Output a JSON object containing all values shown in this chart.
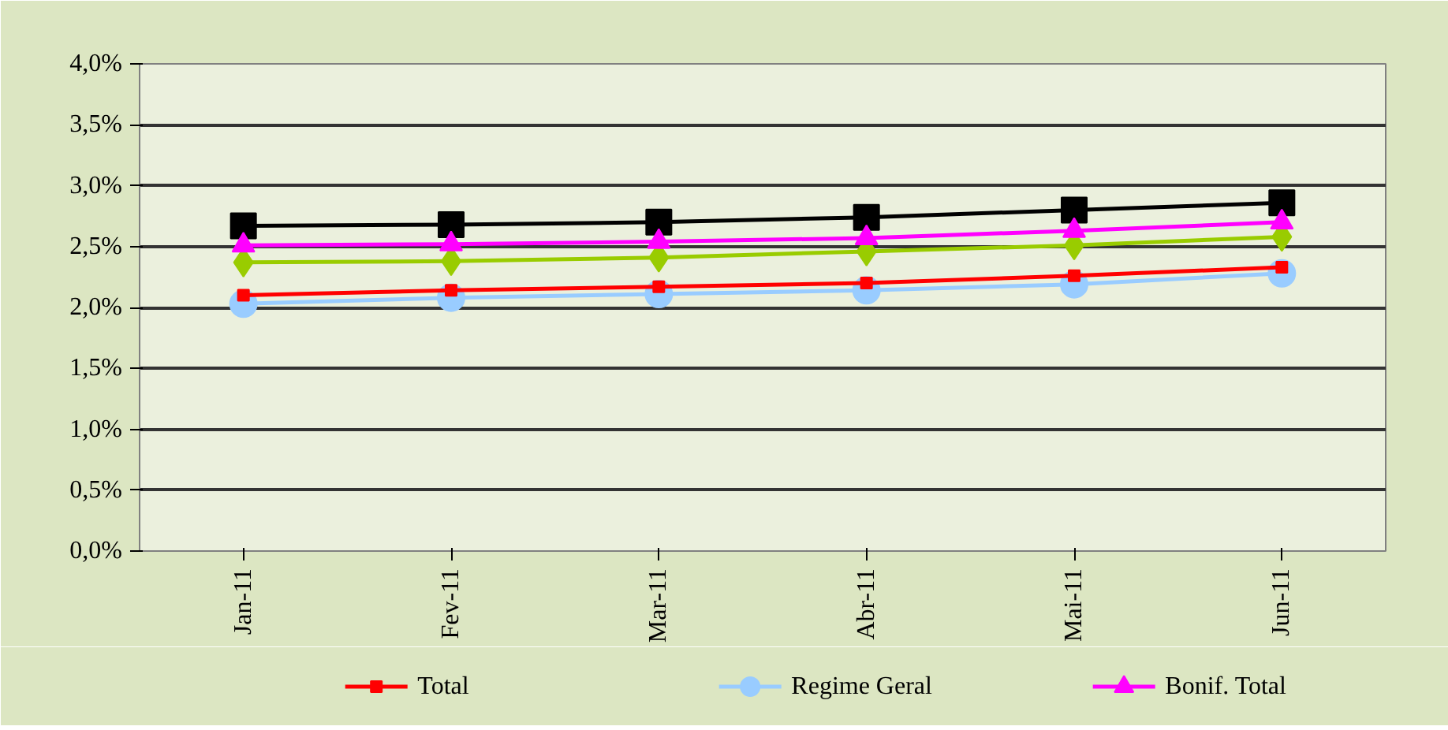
{
  "chart_data": {
    "type": "line",
    "categories": [
      "Jan-11",
      "Fev-11",
      "Mar-11",
      "Abr-11",
      "Mai-11",
      "Jun-11"
    ],
    "ylim": [
      0,
      4
    ],
    "yticks": [
      {
        "value": 0,
        "label": "0,0%"
      },
      {
        "value": 0.5,
        "label": "0,5%"
      },
      {
        "value": 1,
        "label": "1,0%"
      },
      {
        "value": 1.5,
        "label": "1,5%"
      },
      {
        "value": 2,
        "label": "2,0%"
      },
      {
        "value": 2.5,
        "label": "2,5%"
      },
      {
        "value": 3,
        "label": "3,0%"
      },
      {
        "value": 3.5,
        "label": "3,5%"
      },
      {
        "value": 4,
        "label": "4,0%"
      }
    ],
    "grid": "y",
    "legend": "bottom",
    "series": [
      {
        "name": "Total",
        "color": "#ff0000",
        "marker": "square",
        "values": [
          2.1,
          2.14,
          2.17,
          2.2,
          2.26,
          2.33
        ]
      },
      {
        "name": "Regime Geral",
        "color": "#99ccff",
        "marker": "circle",
        "values": [
          2.03,
          2.08,
          2.11,
          2.14,
          2.19,
          2.28
        ]
      },
      {
        "name": "Bonif. Total",
        "color": "#ff00ff",
        "marker": "triangle",
        "values": [
          2.51,
          2.52,
          2.54,
          2.57,
          2.63,
          2.7
        ]
      },
      {
        "color": "#99cc00",
        "marker": "diamond",
        "values": [
          2.37,
          2.38,
          2.41,
          2.46,
          2.51,
          2.58
        ]
      },
      {
        "color": "#000000",
        "marker": "square",
        "values": [
          2.67,
          2.68,
          2.7,
          2.74,
          2.8,
          2.86
        ]
      }
    ]
  }
}
